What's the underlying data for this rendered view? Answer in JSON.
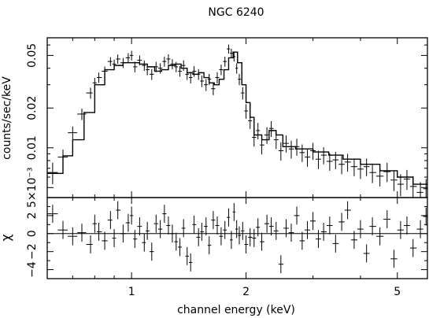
{
  "chart_data": [
    {
      "type": "scatter",
      "title": "NGC 6240",
      "xlabel": "",
      "ylabel": "counts/sec/keV",
      "xscale": "log",
      "yscale": "log",
      "xlim": [
        0.6,
        6.0
      ],
      "ylim": [
        0.0042,
        0.068
      ],
      "ytick_labels": [
        "5×10⁻³",
        "0.01",
        "0.02",
        "0.05"
      ],
      "ytick_values": [
        0.005,
        0.01,
        0.02,
        0.05
      ],
      "model": {
        "x": [
          0.6,
          0.66,
          0.7,
          0.75,
          0.8,
          0.85,
          0.9,
          0.95,
          1.0,
          1.05,
          1.1,
          1.15,
          1.2,
          1.25,
          1.3,
          1.35,
          1.4,
          1.45,
          1.5,
          1.55,
          1.6,
          1.65,
          1.7,
          1.75,
          1.8,
          1.85,
          1.9,
          1.95,
          2.0,
          2.05,
          2.1,
          2.2,
          2.3,
          2.4,
          2.5,
          2.7,
          3.0,
          3.3,
          3.6,
          4.0,
          4.5,
          5.0,
          5.5,
          6.0
        ],
        "y": [
          0.0064,
          0.0087,
          0.0115,
          0.0185,
          0.03,
          0.039,
          0.042,
          0.044,
          0.044,
          0.043,
          0.041,
          0.038,
          0.039,
          0.042,
          0.043,
          0.04,
          0.037,
          0.036,
          0.037,
          0.034,
          0.031,
          0.03,
          0.033,
          0.039,
          0.048,
          0.053,
          0.044,
          0.03,
          0.022,
          0.017,
          0.0125,
          0.0115,
          0.0135,
          0.0125,
          0.0102,
          0.0098,
          0.0093,
          0.0088,
          0.0082,
          0.0075,
          0.0067,
          0.006,
          0.0053,
          0.0045
        ]
      },
      "series": [
        {
          "name": "data",
          "x": [
            0.62,
            0.66,
            0.7,
            0.74,
            0.78,
            0.8,
            0.82,
            0.85,
            0.88,
            0.9,
            0.92,
            0.95,
            0.98,
            1.0,
            1.02,
            1.05,
            1.08,
            1.1,
            1.13,
            1.16,
            1.19,
            1.22,
            1.25,
            1.28,
            1.31,
            1.34,
            1.37,
            1.4,
            1.43,
            1.46,
            1.5,
            1.53,
            1.57,
            1.6,
            1.64,
            1.68,
            1.72,
            1.76,
            1.8,
            1.83,
            1.86,
            1.89,
            1.92,
            1.96,
            2.0,
            2.05,
            2.1,
            2.15,
            2.2,
            2.27,
            2.33,
            2.4,
            2.47,
            2.55,
            2.63,
            2.72,
            2.81,
            2.9,
            3.0,
            3.1,
            3.2,
            3.32,
            3.44,
            3.57,
            3.7,
            3.85,
            4.0,
            4.15,
            4.3,
            4.5,
            4.7,
            4.9,
            5.1,
            5.3,
            5.5,
            5.75,
            5.95
          ],
          "y": [
            0.0065,
            0.0085,
            0.013,
            0.018,
            0.026,
            0.031,
            0.034,
            0.038,
            0.045,
            0.043,
            0.047,
            0.044,
            0.048,
            0.05,
            0.041,
            0.046,
            0.042,
            0.039,
            0.036,
            0.041,
            0.04,
            0.045,
            0.047,
            0.043,
            0.041,
            0.038,
            0.042,
            0.036,
            0.034,
            0.038,
            0.036,
            0.032,
            0.03,
            0.033,
            0.028,
            0.034,
            0.039,
            0.045,
            0.056,
            0.052,
            0.049,
            0.04,
            0.033,
            0.026,
            0.019,
            0.016,
            0.012,
            0.0135,
            0.0105,
            0.0125,
            0.014,
            0.0115,
            0.0095,
            0.0108,
            0.0098,
            0.0102,
            0.0092,
            0.0085,
            0.0095,
            0.0082,
            0.0088,
            0.0079,
            0.0081,
            0.0075,
            0.0078,
            0.0072,
            0.0069,
            0.0072,
            0.0065,
            0.0061,
            0.0066,
            0.0057,
            0.0053,
            0.0058,
            0.0051,
            0.0046,
            0.0049
          ],
          "yerr": [
            0.0012,
            0.0012,
            0.0015,
            0.0018,
            0.0025,
            0.0028,
            0.003,
            0.0032,
            0.0035,
            0.0035,
            0.0038,
            0.0038,
            0.004,
            0.0042,
            0.0038,
            0.004,
            0.0038,
            0.0036,
            0.0034,
            0.0037,
            0.0036,
            0.0039,
            0.004,
            0.0038,
            0.0037,
            0.0035,
            0.0038,
            0.0034,
            0.0033,
            0.0035,
            0.0034,
            0.0032,
            0.0031,
            0.0032,
            0.003,
            0.0033,
            0.0036,
            0.0039,
            0.0044,
            0.0042,
            0.004,
            0.0036,
            0.0032,
            0.0028,
            0.0024,
            0.0021,
            0.0018,
            0.0019,
            0.0016,
            0.0018,
            0.0019,
            0.0017,
            0.0015,
            0.0016,
            0.0015,
            0.0015,
            0.0014,
            0.0013,
            0.0014,
            0.0013,
            0.0013,
            0.0012,
            0.0012,
            0.0012,
            0.0012,
            0.0011,
            0.0011,
            0.0011,
            0.0011,
            0.001,
            0.0011,
            0.001,
            0.001,
            0.001,
            0.001,
            0.0009,
            0.0009
          ]
        }
      ]
    },
    {
      "type": "scatter",
      "title": "",
      "xlabel": "channel energy (keV)",
      "ylabel": "χ",
      "xscale": "log",
      "xlim": [
        0.6,
        6.0
      ],
      "ylim": [
        -5,
        4
      ],
      "xtick_labels": [
        "1",
        "2",
        "5"
      ],
      "xtick_values": [
        1,
        2,
        5
      ],
      "ytick_labels": [
        "−4",
        "−2",
        "0",
        "2"
      ],
      "ytick_values": [
        -4,
        -2,
        0,
        2
      ],
      "series": [
        {
          "name": "residuals",
          "x": [
            0.62,
            0.66,
            0.7,
            0.74,
            0.78,
            0.8,
            0.82,
            0.85,
            0.88,
            0.9,
            0.92,
            0.95,
            0.98,
            1.0,
            1.02,
            1.05,
            1.08,
            1.1,
            1.13,
            1.16,
            1.19,
            1.22,
            1.25,
            1.28,
            1.31,
            1.34,
            1.37,
            1.4,
            1.43,
            1.46,
            1.5,
            1.53,
            1.57,
            1.6,
            1.64,
            1.68,
            1.72,
            1.76,
            1.8,
            1.83,
            1.86,
            1.89,
            1.92,
            1.96,
            2.0,
            2.05,
            2.1,
            2.15,
            2.2,
            2.27,
            2.33,
            2.4,
            2.47,
            2.55,
            2.63,
            2.72,
            2.81,
            2.9,
            3.0,
            3.1,
            3.2,
            3.32,
            3.44,
            3.57,
            3.7,
            3.85,
            4.0,
            4.15,
            4.3,
            4.5,
            4.7,
            4.9,
            5.1,
            5.3,
            5.5,
            5.75,
            5.95
          ],
          "y": [
            2.2,
            0.4,
            -0.3,
            0.1,
            -1.2,
            1.1,
            0.2,
            -0.8,
            1.5,
            -0.5,
            2.6,
            0.0,
            1.2,
            2.0,
            -0.6,
            0.8,
            -1.0,
            0.3,
            -2.0,
            1.1,
            0.5,
            2.2,
            0.9,
            0.0,
            -0.9,
            -1.5,
            0.6,
            -2.5,
            -3.2,
            1.0,
            -0.4,
            0.2,
            0.8,
            -1.3,
            1.5,
            0.9,
            -0.3,
            0.4,
            1.8,
            -0.7,
            2.4,
            0.5,
            -0.2,
            0.3,
            -1.2,
            -0.4,
            -0.5,
            0.7,
            -0.9,
            1.1,
            0.8,
            0.3,
            -3.4,
            0.6,
            0.1,
            2.0,
            -0.8,
            0.4,
            1.4,
            -0.6,
            0.2,
            0.9,
            -1.1,
            1.3,
            2.6,
            -0.7,
            0.5,
            -2.2,
            0.8,
            -0.3,
            1.6,
            -2.8,
            0.4,
            0.9,
            -1.6,
            0.5,
            1.9
          ],
          "yerr": [
            1,
            1,
            1,
            1,
            1,
            1,
            1,
            1,
            1,
            1,
            1,
            1,
            1,
            1,
            1,
            1,
            1,
            1,
            1,
            1,
            1,
            1,
            1,
            1,
            1,
            1,
            1,
            1,
            1,
            1,
            1,
            1,
            1,
            1,
            1,
            1,
            1,
            1,
            1,
            1,
            1,
            1,
            1,
            1,
            1,
            1,
            1,
            1,
            1,
            1,
            1,
            1,
            1,
            1,
            1,
            1,
            1,
            1,
            1,
            1,
            1,
            1,
            1,
            1,
            1,
            1,
            1,
            1,
            1,
            1,
            1,
            1,
            1,
            1,
            1,
            1,
            1
          ]
        }
      ]
    }
  ]
}
